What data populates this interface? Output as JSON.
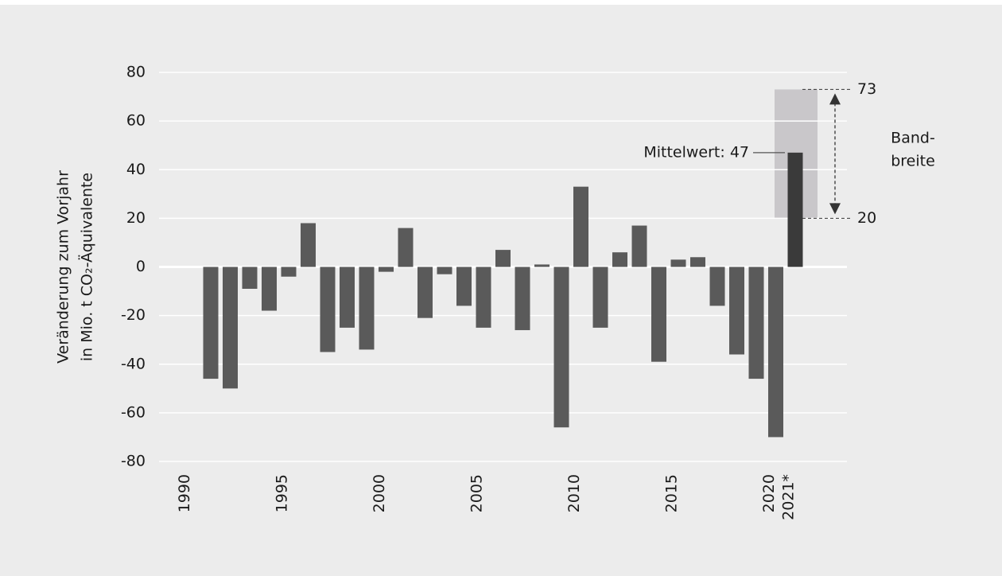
{
  "chart_data": {
    "type": "bar",
    "y_label_lines": [
      "Veränderung  zum Vorjahr",
      "in Mio. t CO₂-Äquivalente"
    ],
    "categories": [
      "1990",
      null,
      null,
      null,
      null,
      "1995",
      null,
      null,
      null,
      null,
      "2000",
      null,
      null,
      null,
      null,
      "2005",
      null,
      null,
      null,
      null,
      "2010",
      null,
      null,
      null,
      null,
      "2015",
      null,
      null,
      null,
      null,
      "2020",
      "2021*"
    ],
    "values": [
      null,
      -46,
      -50,
      -9,
      -18,
      -4,
      18,
      -35,
      -25,
      -34,
      -2,
      16,
      -21,
      -3,
      -16,
      -25,
      7,
      -26,
      1,
      -66,
      33,
      -25,
      6,
      17,
      -39,
      3,
      4,
      -16,
      -36,
      -46,
      -70,
      47
    ],
    "value_labels": [
      null,
      null,
      null,
      null,
      null,
      null,
      null,
      null,
      null,
      null,
      null,
      null,
      null,
      null,
      null,
      null,
      null,
      null,
      null,
      null,
      null,
      null,
      null,
      null,
      null,
      null,
      null,
      null,
      null,
      null,
      null,
      "Mittelwert: 47"
    ],
    "color": "#5a5a5a",
    "highlight_color": "#3a3a3a",
    "range": [
      20,
      73
    ],
    "range_label_lines": [
      "Band-",
      "breite"
    ],
    "range_color": "#c9c7ca",
    "ylim": [
      -80,
      80
    ],
    "yticks": [
      -80,
      -60,
      -40,
      -20,
      0,
      20,
      40,
      60,
      80
    ],
    "grid": true
  }
}
